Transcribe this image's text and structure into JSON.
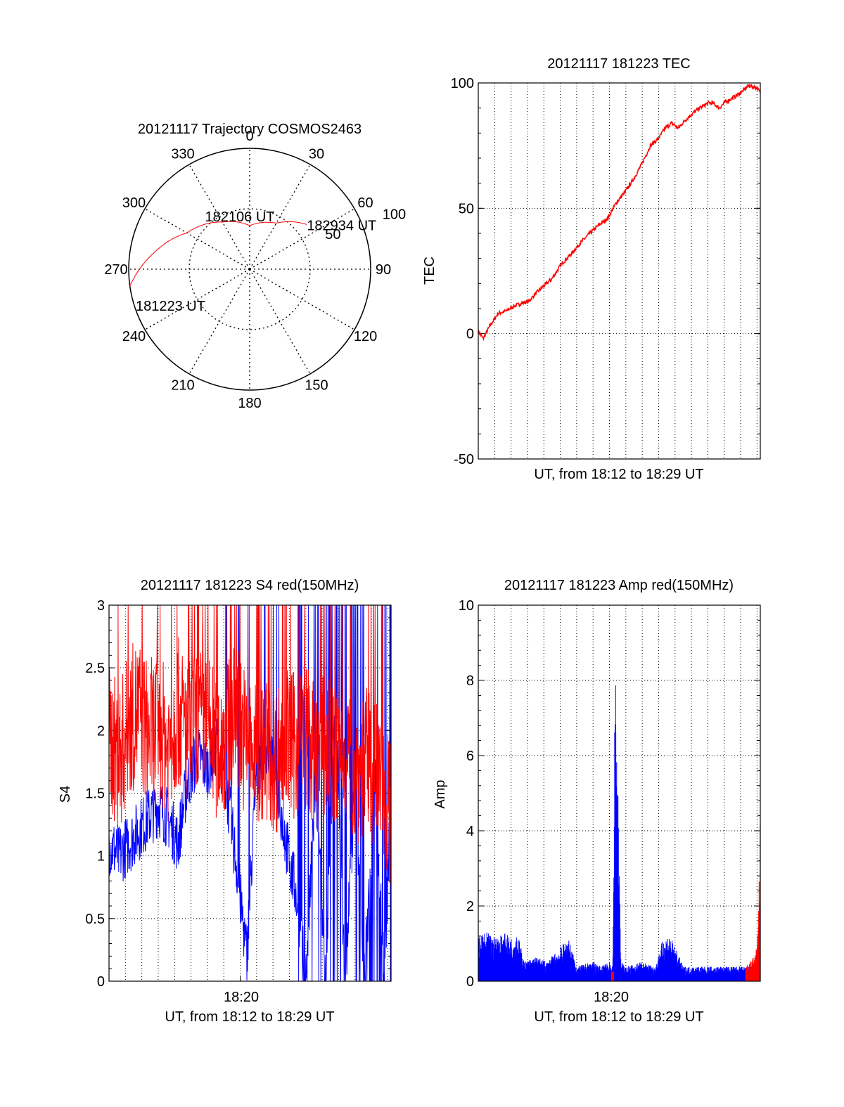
{
  "colors": {
    "red": "#ff0000",
    "blue": "#0000ff",
    "axis": "#000000",
    "grid": "#000000"
  },
  "chart_data": [
    {
      "type": "polar",
      "title": "20121117 Trajectory COSMOS2463",
      "azimuth_labels": [
        "0",
        "30",
        "60",
        "90",
        "120",
        "150",
        "180",
        "210",
        "240",
        "270",
        "300",
        "330"
      ],
      "radial_labels": [
        "50",
        "100"
      ],
      "radial_range": [
        0,
        100
      ],
      "grid": true,
      "trajectory": {
        "color": "red",
        "points": [
          {
            "az": 262,
            "el": 0
          },
          {
            "az": 280,
            "el": 20
          },
          {
            "az": 300,
            "el": 40
          },
          {
            "az": 330,
            "el": 55
          },
          {
            "az": 0,
            "el": 64
          },
          {
            "az": 30,
            "el": 56
          },
          {
            "az": 45,
            "el": 45
          },
          {
            "az": 52,
            "el": 40
          }
        ]
      },
      "annotations": [
        {
          "text": "182934 UT",
          "az": 52,
          "el": 40
        },
        {
          "text": "182106 UT",
          "az": 350,
          "el": 55
        },
        {
          "text": "181223 UT",
          "az": 252,
          "el": 4
        }
      ]
    },
    {
      "type": "line",
      "title": "20121117 181223 TEC",
      "xlabel": "UT, from 18:12 to 18:29 UT",
      "ylabel": "TEC",
      "ylim": [
        -50,
        100
      ],
      "yticks": [
        "-50",
        "0",
        "50",
        "100"
      ],
      "xlim": [
        0,
        17.2
      ],
      "grid": true,
      "series": [
        {
          "color": "red",
          "x": [
            0,
            0.3,
            0.7,
            1.2,
            1.7,
            2.2,
            2.6,
            3.1,
            3.5,
            4.0,
            4.5,
            5.1,
            5.7,
            6.2,
            6.8,
            7.3,
            7.9,
            8.4,
            9.0,
            9.5,
            10.0,
            10.5,
            11.0,
            11.4,
            11.8,
            12.2,
            12.6,
            13.1,
            13.5,
            13.8,
            14.0,
            14.3,
            14.7,
            15.0,
            15.5,
            16.0,
            16.5,
            17.0,
            17.2
          ],
          "y": [
            1,
            -2,
            3,
            8,
            9,
            11,
            12,
            13,
            16,
            19,
            22,
            28,
            32,
            36,
            40,
            43,
            46,
            52,
            57,
            62,
            68,
            75,
            78,
            82,
            84,
            82,
            85,
            88,
            90,
            91,
            92,
            92,
            90,
            92,
            94,
            96,
            99,
            98,
            96
          ]
        }
      ]
    },
    {
      "type": "line",
      "title": "20121117 181223 S4 red(150MHz)",
      "xlabel": "UT, from 18:12 to 18:29 UT",
      "ylabel": "S4",
      "xtick_labels": [
        "18:20"
      ],
      "ylim": [
        0,
        3
      ],
      "yticks": [
        "0",
        "0.5",
        "1",
        "1.5",
        "2",
        "2.5",
        "3"
      ],
      "xlim": [
        0,
        17.2
      ],
      "grid": true,
      "series": [
        {
          "color": "red",
          "x": [
            0,
            0.6,
            1.2,
            1.8,
            2.4,
            3.0,
            3.6,
            4.2,
            4.8,
            5.4,
            6.0,
            6.6,
            7.2,
            7.8,
            8.4,
            9.0,
            9.6,
            10.2,
            10.8,
            11.4,
            12.0,
            12.6,
            13.2,
            13.8,
            14.4,
            15.0,
            15.6,
            16.2,
            16.8,
            17.2
          ],
          "y": [
            1.9,
            1.7,
            2.0,
            2.1,
            1.9,
            2.0,
            1.8,
            2.1,
            1.9,
            2.0,
            2.0,
            1.8,
            1.9,
            2.1,
            1.8,
            1.7,
            1.8,
            1.7,
            1.9,
            1.8,
            1.9,
            1.7,
            1.8,
            1.7,
            1.8,
            1.6,
            1.7,
            1.6,
            1.4,
            1.3
          ]
        },
        {
          "color": "blue",
          "x": [
            0,
            0.6,
            1.2,
            1.8,
            2.4,
            3.0,
            3.6,
            4.2,
            4.8,
            5.4,
            6.0,
            6.6,
            7.2,
            7.8,
            8.4,
            9.0,
            9.6,
            10.2,
            10.8,
            11.4,
            12.0,
            12.6,
            13.2,
            13.8,
            14.4,
            15.0,
            15.6,
            16.2,
            16.8,
            17.2
          ],
          "y": [
            1.1,
            1.0,
            1.1,
            1.2,
            1.3,
            1.4,
            1.3,
            1.1,
            1.6,
            1.8,
            1.7,
            1.9,
            1.5,
            0.9,
            0.2,
            1.7,
            1.9,
            1.6,
            1.1,
            0.7,
            0.0,
            1.6,
            0.0,
            2.2,
            0.0,
            1.6,
            0.0,
            1.7,
            0.0,
            1.6
          ]
        }
      ]
    },
    {
      "type": "line",
      "title": "20121117 181223 Amp red(150MHz)",
      "xlabel": "UT, from 18:12 to 18:29 UT",
      "ylabel": "Amp",
      "xtick_labels": [
        "18:20"
      ],
      "ylim": [
        0,
        10
      ],
      "yticks": [
        "0",
        "2",
        "4",
        "6",
        "8",
        "10"
      ],
      "xlim": [
        0,
        17.2
      ],
      "grid": true,
      "series": [
        {
          "color": "blue",
          "x": [
            0,
            0.5,
            1.0,
            1.5,
            2.0,
            2.4,
            2.8,
            3.5,
            4.2,
            5.0,
            5.5,
            6.0,
            7.0,
            7.5,
            8.0,
            8.2,
            8.35,
            8.5,
            8.7,
            9.0,
            10.0,
            10.8,
            11.2,
            11.6,
            12.0,
            12.5,
            13.5,
            14.5,
            15.5,
            16.5,
            17.0
          ],
          "y": [
            0.9,
            1.0,
            0.9,
            1.0,
            0.9,
            1.0,
            0.4,
            0.5,
            0.4,
            0.7,
            0.9,
            0.3,
            0.4,
            0.3,
            0.4,
            0.3,
            6.6,
            4.3,
            0.4,
            0.3,
            0.4,
            0.3,
            0.8,
            1.0,
            0.7,
            0.3,
            0.3,
            0.3,
            0.3,
            0.3,
            0.3
          ]
        },
        {
          "color": "red",
          "x": [
            16.3,
            16.6,
            16.9,
            17.05,
            17.1,
            17.15,
            17.2
          ],
          "y": [
            0.3,
            0.4,
            0.6,
            1.0,
            1.6,
            2.5,
            4.1
          ]
        }
      ]
    }
  ]
}
